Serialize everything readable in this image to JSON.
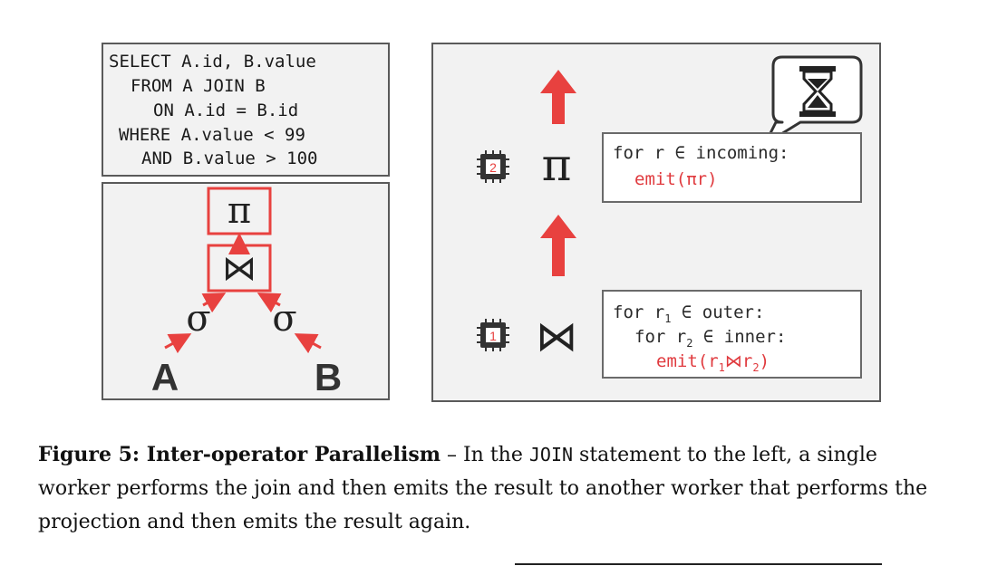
{
  "sql": {
    "line1": "SELECT A.id, B.value",
    "line2": "FROM A JOIN B",
    "line3": "ON A.id = B.id",
    "line4": "WHERE A.value < 99",
    "line5": "AND B.value > 100"
  },
  "tree": {
    "projection": "π",
    "join": "⋈",
    "select_left": "σ",
    "select_right": "σ",
    "table_a": "A",
    "table_b": "B"
  },
  "workers": [
    {
      "chip": "2",
      "operator": "π",
      "code": {
        "l1": "for r ∈ incoming:",
        "l2": "emit(πr)"
      }
    },
    {
      "chip": "1",
      "operator": "⋈",
      "code": {
        "l1a": "for r",
        "l1sub": "1",
        "l1b": " ∈ outer:",
        "l2a": "for r",
        "l2sub": "2",
        "l2b": " ∈ inner:",
        "l3a": "emit(r",
        "l3sub1": "1",
        "l3join": "⋈",
        "l3b": "r",
        "l3sub2": "2",
        "l3c": ")"
      }
    }
  ],
  "caption": {
    "label": "Figure 5: Inter-operator Parallelism",
    "dash": " – In the ",
    "keyword": "JOIN",
    "text": " statement to the left, a single worker performs the join and then emits the result to another worker that performs the projection and then emits the result again."
  },
  "colors": {
    "accent": "#e8413f",
    "box_fill": "#f2f2f2",
    "border": "#5a5a5a"
  }
}
